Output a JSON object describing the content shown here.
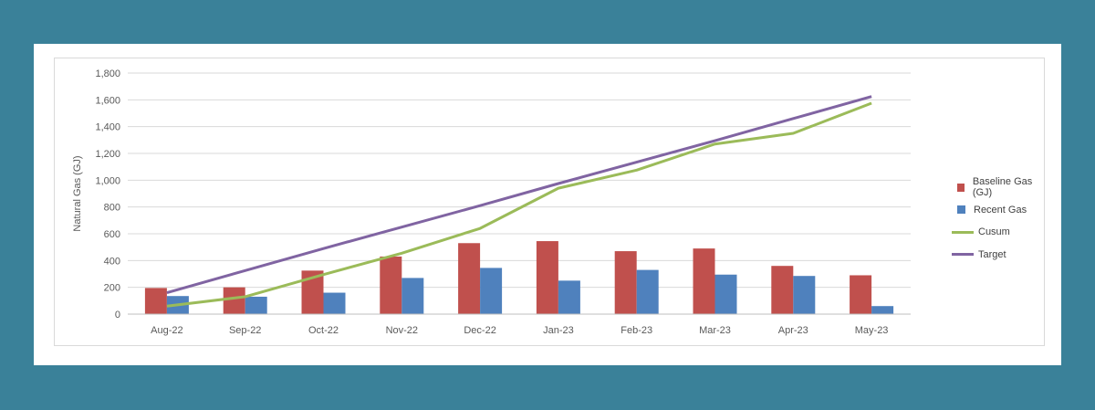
{
  "colors": {
    "background": "#3a8199",
    "baseline": "#c0504d",
    "recent": "#4f81bd",
    "cusum": "#9bbb59",
    "target": "#8064a2",
    "grid": "#d9d9d9",
    "axis_text": "#595959"
  },
  "chart_data": {
    "type": "bar",
    "title": "",
    "xlabel": "",
    "ylabel": "Natural Gas (GJ)",
    "ylim": [
      0,
      1800
    ],
    "yticks": [
      0,
      200,
      400,
      600,
      800,
      1000,
      1200,
      1400,
      1600,
      1800
    ],
    "ytick_labels": [
      "0",
      "200",
      "400",
      "600",
      "800",
      "1,000",
      "1,200",
      "1,400",
      "1,600",
      "1,800"
    ],
    "categories": [
      "Aug-22",
      "Sep-22",
      "Oct-22",
      "Nov-22",
      "Dec-22",
      "Jan-23",
      "Feb-23",
      "Mar-23",
      "Apr-23",
      "May-23"
    ],
    "grid": true,
    "legend_position": "right",
    "series": [
      {
        "name": "Baseline Gas (GJ)",
        "kind": "bar",
        "color": "#c0504d",
        "values": [
          195,
          200,
          325,
          430,
          530,
          545,
          470,
          490,
          360,
          290
        ]
      },
      {
        "name": "Recent Gas",
        "kind": "bar",
        "color": "#4f81bd",
        "values": [
          135,
          130,
          160,
          270,
          345,
          250,
          330,
          295,
          285,
          60
        ]
      },
      {
        "name": "Cusum",
        "kind": "line",
        "color": "#9bbb59",
        "values": [
          60,
          130,
          295,
          455,
          640,
          940,
          1075,
          1270,
          1350,
          1575
        ]
      },
      {
        "name": "Target",
        "kind": "line",
        "color": "#8064a2",
        "values": [
          160,
          325,
          490,
          650,
          810,
          975,
          1135,
          1295,
          1460,
          1625
        ]
      }
    ]
  }
}
